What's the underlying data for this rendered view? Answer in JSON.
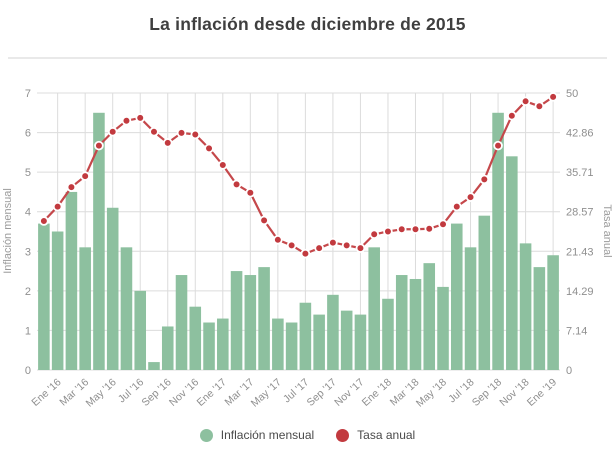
{
  "title": "La inflación desde diciembre de 2015",
  "legend": {
    "bars_label": "Inflación mensual",
    "line_label": "Tasa anual"
  },
  "colors": {
    "bar": "#8dc09f",
    "line": "#c5484b",
    "dot": "#c23a3f",
    "dot_halo": "#ffffff",
    "grid": "#dcdcdc",
    "axis_text": "#8f8f8f",
    "axis_title_text": "#9b9b9b",
    "title_text": "#3f3f3f",
    "divider": "#e9e9e9",
    "legend_text": "#4a4a4a"
  },
  "chart_data": {
    "type": "bar",
    "subtype": "bar+line combo, dual axis",
    "title": "La inflación desde diciembre de 2015",
    "categories": [
      "Dic '15",
      "Ene '16",
      "Feb '16",
      "Mar '16",
      "Abr '16",
      "May '16",
      "Jun '16",
      "Jul '16",
      "Ago '16",
      "Sep '16",
      "Oct '16",
      "Nov '16",
      "Dic '16",
      "Ene '17",
      "Feb '17",
      "Mar '17",
      "Abr '17",
      "May '17",
      "Jun '17",
      "Jul '17",
      "Ago '17",
      "Sep '17",
      "Oct '17",
      "Nov '17",
      "Dic '17",
      "Ene '18",
      "Feb '18",
      "Mar '18",
      "Abr '18",
      "May '18",
      "Jun '18",
      "Jul '18",
      "Ago '18",
      "Sep '18",
      "Oct '18",
      "Nov '18",
      "Dic '18",
      "Ene '19"
    ],
    "visible_x_tick_labels": [
      "Ene '16",
      "Mar '16",
      "May '16",
      "Jul '16",
      "Sep '16",
      "Nov '16",
      "Ene '17",
      "Mar '17",
      "May '17",
      "Jul '17",
      "Sep '17",
      "Nov '17",
      "Ene '18",
      "Mar '18",
      "May '18",
      "Jul '18",
      "Sep '18",
      "Nov '18",
      "Ene '19"
    ],
    "series": [
      {
        "name": "Inflación mensual",
        "type": "bar",
        "axis": "left",
        "values": [
          3.7,
          3.5,
          4.5,
          3.1,
          6.5,
          4.1,
          3.1,
          2.0,
          0.2,
          1.1,
          2.4,
          1.6,
          1.2,
          1.3,
          2.5,
          2.4,
          2.6,
          1.3,
          1.2,
          1.7,
          1.4,
          1.9,
          1.5,
          1.4,
          3.1,
          1.8,
          2.4,
          2.3,
          2.7,
          2.1,
          3.7,
          3.1,
          3.9,
          6.5,
          5.4,
          3.2,
          2.6,
          2.9
        ]
      },
      {
        "name": "Tasa anual",
        "type": "line",
        "axis": "right",
        "values": [
          26.9,
          29.5,
          33,
          35,
          40.5,
          43,
          45,
          45.5,
          43,
          41,
          42.8,
          42.5,
          40,
          37,
          33.5,
          32,
          27,
          23.5,
          22.5,
          21,
          22,
          23,
          22.5,
          22,
          24.5,
          25,
          25.4,
          25.4,
          25.5,
          26.3,
          29.5,
          31.2,
          34.4,
          40.5,
          45.9,
          48.5,
          47.6,
          49.3
        ]
      }
    ],
    "left_axis": {
      "label": "Inflación mensual",
      "min": 0,
      "max": 7,
      "ticks": [
        "0",
        "1",
        "2",
        "3",
        "4",
        "5",
        "6",
        "7"
      ]
    },
    "right_axis": {
      "label": "Tasa anual",
      "min": 0,
      "max": 50,
      "ticks": [
        "0",
        "7.14",
        "14.29",
        "21.43",
        "28.57",
        "35.71",
        "42.86",
        "50"
      ]
    },
    "grid": true,
    "x_labels_rotated_deg": -42,
    "highlighted_dots": [
      "Abr '16",
      "Sep '18"
    ],
    "legend_position": "bottom-center"
  }
}
